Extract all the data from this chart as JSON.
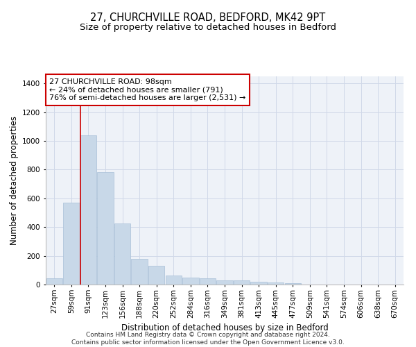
{
  "title_line1": "27, CHURCHVILLE ROAD, BEDFORD, MK42 9PT",
  "title_line2": "Size of property relative to detached houses in Bedford",
  "xlabel": "Distribution of detached houses by size in Bedford",
  "ylabel": "Number of detached properties",
  "bar_color": "#c8d8e8",
  "bar_edgecolor": "#a8c0d8",
  "categories": [
    "27sqm",
    "59sqm",
    "91sqm",
    "123sqm",
    "156sqm",
    "188sqm",
    "220sqm",
    "252sqm",
    "284sqm",
    "316sqm",
    "349sqm",
    "381sqm",
    "413sqm",
    "445sqm",
    "477sqm",
    "509sqm",
    "541sqm",
    "574sqm",
    "606sqm",
    "638sqm",
    "670sqm"
  ],
  "values": [
    45,
    570,
    1040,
    785,
    425,
    180,
    130,
    65,
    50,
    45,
    30,
    27,
    20,
    16,
    11,
    0,
    0,
    0,
    0,
    0,
    0
  ],
  "ylim": [
    0,
    1450
  ],
  "yticks": [
    0,
    200,
    400,
    600,
    800,
    1000,
    1200,
    1400
  ],
  "vline_x_index": 2,
  "annotation_title": "27 CHURCHVILLE ROAD: 98sqm",
  "annotation_line2": "← 24% of detached houses are smaller (791)",
  "annotation_line3": "76% of semi-detached houses are larger (2,531) →",
  "annotation_box_color": "#ffffff",
  "annotation_box_edgecolor": "#cc0000",
  "vline_color": "#cc0000",
  "grid_color": "#d0d8e8",
  "background_color": "#eef2f8",
  "footer_line1": "Contains HM Land Registry data © Crown copyright and database right 2024.",
  "footer_line2": "Contains public sector information licensed under the Open Government Licence v3.0.",
  "title_fontsize": 10.5,
  "subtitle_fontsize": 9.5,
  "axis_label_fontsize": 8.5,
  "tick_fontsize": 7.5,
  "annotation_fontsize": 8,
  "footer_fontsize": 6.5
}
